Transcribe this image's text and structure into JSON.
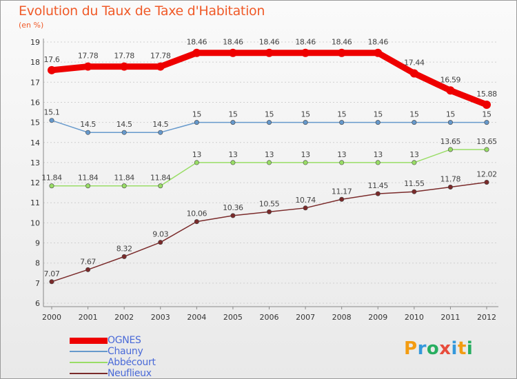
{
  "header": {
    "title": "Evolution du Taux de Taxe d'Habitation",
    "unit": "(en %)"
  },
  "chart_data": {
    "type": "line",
    "title": "Evolution du Taux de Taxe d'Habitation",
    "ylabel": "(en %)",
    "xlabel": "",
    "x": [
      "2000",
      "2001",
      "2002",
      "2003",
      "2004",
      "2005",
      "2006",
      "2007",
      "2008",
      "2009",
      "2010",
      "2011",
      "2012"
    ],
    "ylim": [
      6,
      19
    ],
    "yticks": [
      "6",
      "7",
      "8",
      "9",
      "10",
      "11",
      "12",
      "13",
      "14",
      "15",
      "16",
      "17",
      "18",
      "19"
    ],
    "grid": "horizontal dashed",
    "legend_position": "bottom-left",
    "series": [
      {
        "name": "OGNES",
        "color": "#ee0000",
        "values": [
          17.6,
          17.78,
          17.78,
          17.78,
          18.46,
          18.46,
          18.46,
          18.46,
          18.46,
          18.46,
          17.44,
          16.59,
          15.88
        ],
        "labels": [
          "17.6",
          "17.78",
          "17.78",
          "17.78",
          "18.46",
          "18.46",
          "18.46",
          "18.46",
          "18.46",
          "18.46",
          "17.44",
          "16.59",
          "15.88"
        ]
      },
      {
        "name": "Chauny",
        "color": "#6699cc",
        "values": [
          15.1,
          14.5,
          14.5,
          14.5,
          15,
          15,
          15,
          15,
          15,
          15,
          15,
          15,
          15
        ],
        "labels": [
          "15.1",
          "14.5",
          "14.5",
          "14.5",
          "15",
          "15",
          "15",
          "15",
          "15",
          "15",
          "15",
          "15",
          "15"
        ]
      },
      {
        "name": "Abbécourt",
        "color": "#99dd66",
        "values": [
          11.84,
          11.84,
          11.84,
          11.84,
          13,
          13,
          13,
          13,
          13,
          13,
          13,
          13.65,
          13.65
        ],
        "labels": [
          "11.84",
          "11.84",
          "11.84",
          "11.84",
          "13",
          "13",
          "13",
          "13",
          "13",
          "13",
          "13",
          "13.65",
          "13.65"
        ]
      },
      {
        "name": "Neuflieux",
        "color": "#7a2a2a",
        "values": [
          7.07,
          7.67,
          8.32,
          9.03,
          10.06,
          10.36,
          10.55,
          10.74,
          11.17,
          11.45,
          11.55,
          11.78,
          12.02
        ],
        "labels": [
          "7.07",
          "7.67",
          "8.32",
          "9.03",
          "10.06",
          "10.36",
          "10.55",
          "10.74",
          "11.17",
          "11.45",
          "11.55",
          "11.78",
          "12.02"
        ]
      }
    ]
  },
  "logo": {
    "letters": [
      "P",
      "r",
      "o",
      "x",
      "i",
      "t",
      "i"
    ],
    "colors": [
      "#f39c12",
      "#3498db",
      "#27ae60",
      "#e74c3c",
      "#3498db",
      "#f39c12",
      "#27ae60"
    ]
  }
}
